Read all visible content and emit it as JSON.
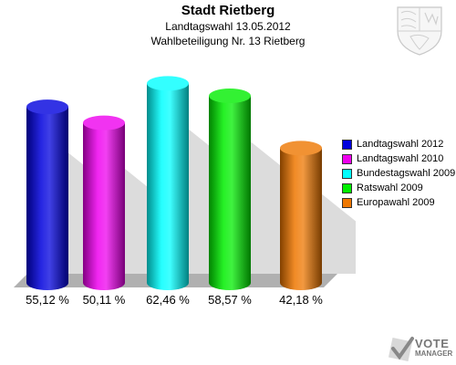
{
  "header": {
    "title": "Stadt Rietberg",
    "subtitle": "Landtagswahl 13.05.2012",
    "subtitle2": "Wahlbeteiligung Nr. 13 Rietberg"
  },
  "chart_data": {
    "type": "bar",
    "title": "Stadt Rietberg",
    "categories": [
      "Landtagswahl 2012",
      "Landtagswahl 2010",
      "Bundestagswahl 2009",
      "Ratswahl 2009",
      "Europawahl 2009"
    ],
    "values": [
      55.12,
      50.11,
      62.46,
      58.57,
      42.18
    ],
    "value_labels": [
      "55,12 %",
      "50,11 %",
      "62,46 %",
      "58,57 %",
      "42,18 %"
    ],
    "colors": [
      "#0000dd",
      "#ee00ee",
      "#00ffff",
      "#00ee00",
      "#ee7700"
    ],
    "ylim": [
      0,
      70
    ],
    "grid": false,
    "legend_position": "right"
  },
  "legend": {
    "items": [
      {
        "label": "Landtagswahl 2012",
        "color": "#0000dd"
      },
      {
        "label": "Landtagswahl 2010",
        "color": "#ee00ee"
      },
      {
        "label": "Bundestagswahl 2009",
        "color": "#00ffff"
      },
      {
        "label": "Ratswahl 2009",
        "color": "#00ee00"
      },
      {
        "label": "Europawahl 2009",
        "color": "#ee7700"
      }
    ]
  },
  "branding": {
    "logo_line1": "VOTE",
    "logo_line2": "MANAGER",
    "crest_icon": "nrw-coat-of-arms-icon",
    "logo_icon": "votemanager-check-icon"
  }
}
